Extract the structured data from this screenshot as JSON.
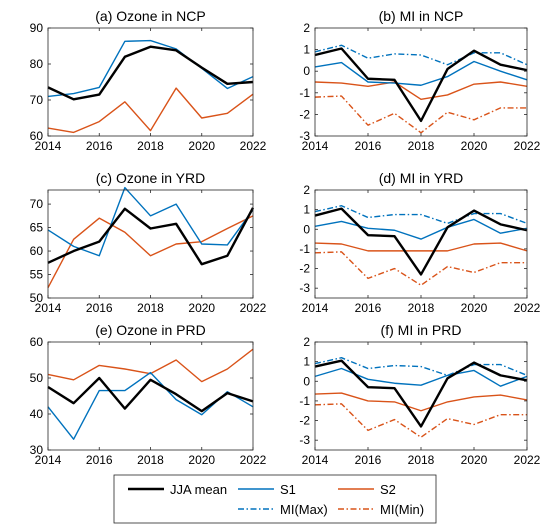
{
  "colors": {
    "jja": "#000000",
    "s1": "#0072bd",
    "s2": "#d95319",
    "mimax": "#0072bd",
    "mimin": "#d95319"
  },
  "legend": [
    {
      "key": "jja",
      "label": "JJA mean",
      "style": "solid-thick"
    },
    {
      "key": "s1",
      "label": "S1",
      "style": "solid"
    },
    {
      "key": "s2",
      "label": "S2",
      "style": "solid"
    },
    {
      "key": "mimax",
      "label": "MI(Max)",
      "style": "dashdot"
    },
    {
      "key": "mimin",
      "label": "MI(Min)",
      "style": "dashdot"
    }
  ],
  "chart_data": [
    {
      "type": "line",
      "title": "(a) Ozone in NCP",
      "x": [
        2014,
        2015,
        2016,
        2017,
        2018,
        2019,
        2020,
        2021,
        2022
      ],
      "xticks": [
        2014,
        2016,
        2018,
        2020,
        2022
      ],
      "xlim": [
        2014,
        2022
      ],
      "ylim": [
        60,
        90
      ],
      "yticks": [
        60,
        70,
        80,
        90
      ],
      "series": [
        {
          "key": "jja",
          "values": [
            73.5,
            70.2,
            71.5,
            82.0,
            84.8,
            83.8,
            79.0,
            74.5,
            75.0
          ]
        },
        {
          "key": "s1",
          "values": [
            71.0,
            71.8,
            73.5,
            86.3,
            86.5,
            84.2,
            78.8,
            73.2,
            76.5
          ]
        },
        {
          "key": "s2",
          "values": [
            62.2,
            61.0,
            64.0,
            69.5,
            61.5,
            73.3,
            65.0,
            66.3,
            71.6
          ]
        }
      ]
    },
    {
      "type": "line",
      "title": "(b) MI in NCP",
      "x": [
        2014,
        2015,
        2016,
        2017,
        2018,
        2019,
        2020,
        2021,
        2022
      ],
      "xticks": [
        2014,
        2016,
        2018,
        2020,
        2022
      ],
      "xlim": [
        2014,
        2022
      ],
      "ylim": [
        -3,
        2
      ],
      "yticks": [
        -3,
        -2,
        -1,
        0,
        1,
        2
      ],
      "series": [
        {
          "key": "jja",
          "values": [
            0.75,
            1.05,
            -0.35,
            -0.4,
            -2.3,
            0.1,
            0.95,
            0.3,
            0.05
          ]
        },
        {
          "key": "s1",
          "values": [
            0.2,
            0.4,
            -0.5,
            -0.55,
            -0.65,
            -0.25,
            0.45,
            0.0,
            -0.4
          ]
        },
        {
          "key": "s2",
          "values": [
            -0.5,
            -0.55,
            -0.7,
            -0.5,
            -1.3,
            -1.1,
            -0.6,
            -0.5,
            -0.7
          ]
        },
        {
          "key": "mimax",
          "values": [
            0.9,
            1.2,
            0.6,
            0.8,
            0.75,
            0.3,
            0.85,
            0.85,
            0.3
          ]
        },
        {
          "key": "mimin",
          "values": [
            -1.2,
            -1.15,
            -2.5,
            -1.95,
            -2.85,
            -1.9,
            -2.25,
            -1.7,
            -1.7
          ]
        }
      ]
    },
    {
      "type": "line",
      "title": "(c) Ozone in YRD",
      "x": [
        2014,
        2015,
        2016,
        2017,
        2018,
        2019,
        2020,
        2021,
        2022
      ],
      "xticks": [
        2014,
        2016,
        2018,
        2020,
        2022
      ],
      "xlim": [
        2014,
        2022
      ],
      "ylim": [
        50,
        73
      ],
      "yticks": [
        50,
        55,
        60,
        65,
        70
      ],
      "series": [
        {
          "key": "jja",
          "values": [
            57.5,
            60.0,
            62.0,
            69.0,
            64.8,
            65.8,
            57.2,
            59.0,
            69.2
          ]
        },
        {
          "key": "s1",
          "values": [
            64.5,
            61.0,
            59.0,
            73.5,
            67.5,
            70.0,
            61.5,
            61.3,
            68.8
          ]
        },
        {
          "key": "s2",
          "values": [
            52.2,
            62.5,
            67.0,
            64.0,
            59.0,
            61.5,
            62.0,
            64.8,
            67.5
          ]
        }
      ]
    },
    {
      "type": "line",
      "title": "(d) MI in YRD",
      "x": [
        2014,
        2015,
        2016,
        2017,
        2018,
        2019,
        2020,
        2021,
        2022
      ],
      "xticks": [
        2014,
        2016,
        2018,
        2020,
        2022
      ],
      "xlim": [
        2014,
        2022
      ],
      "ylim": [
        -3.5,
        2
      ],
      "yticks": [
        -3,
        -2,
        -1,
        0,
        1,
        2
      ],
      "series": [
        {
          "key": "jja",
          "values": [
            0.7,
            1.05,
            -0.3,
            -0.35,
            -2.3,
            0.1,
            0.95,
            0.25,
            -0.05
          ]
        },
        {
          "key": "s1",
          "values": [
            0.15,
            0.4,
            0.05,
            -0.05,
            -0.5,
            0.1,
            0.5,
            -0.2,
            0.05
          ]
        },
        {
          "key": "s2",
          "values": [
            -0.7,
            -0.75,
            -1.1,
            -1.1,
            -1.1,
            -1.1,
            -0.75,
            -0.7,
            -1.1
          ]
        },
        {
          "key": "mimax",
          "values": [
            0.9,
            1.2,
            0.6,
            0.75,
            0.75,
            0.3,
            0.8,
            0.8,
            0.3
          ]
        },
        {
          "key": "mimin",
          "values": [
            -1.2,
            -1.15,
            -2.5,
            -2.0,
            -2.85,
            -1.9,
            -2.2,
            -1.7,
            -1.7
          ]
        }
      ]
    },
    {
      "type": "line",
      "title": "(e) Ozone in PRD",
      "x": [
        2014,
        2015,
        2016,
        2017,
        2018,
        2019,
        2020,
        2021,
        2022
      ],
      "xticks": [
        2014,
        2016,
        2018,
        2020,
        2022
      ],
      "xlim": [
        2014,
        2022
      ],
      "ylim": [
        30,
        60
      ],
      "yticks": [
        30,
        40,
        50,
        60
      ],
      "series": [
        {
          "key": "jja",
          "values": [
            47.5,
            43.0,
            50.0,
            41.5,
            49.5,
            45.5,
            40.8,
            45.8,
            43.5
          ]
        },
        {
          "key": "s1",
          "values": [
            42.0,
            33.0,
            46.5,
            46.5,
            51.5,
            44.0,
            39.8,
            46.2,
            42.0
          ]
        },
        {
          "key": "s2",
          "values": [
            51.0,
            49.5,
            53.5,
            52.5,
            51.2,
            55.0,
            49.0,
            52.5,
            58.0
          ]
        }
      ]
    },
    {
      "type": "line",
      "title": "(f) MI in PRD",
      "x": [
        2014,
        2015,
        2016,
        2017,
        2018,
        2019,
        2020,
        2021,
        2022
      ],
      "xticks": [
        2014,
        2016,
        2018,
        2020,
        2022
      ],
      "xlim": [
        2014,
        2022
      ],
      "ylim": [
        -3.5,
        2
      ],
      "yticks": [
        -3,
        -2,
        -1,
        0,
        1,
        2
      ],
      "series": [
        {
          "key": "jja",
          "values": [
            0.75,
            1.05,
            -0.3,
            -0.35,
            -2.3,
            0.15,
            0.95,
            0.3,
            0.05
          ]
        },
        {
          "key": "s1",
          "values": [
            0.25,
            0.65,
            0.1,
            -0.1,
            -0.2,
            0.3,
            0.55,
            -0.25,
            0.25
          ]
        },
        {
          "key": "s2",
          "values": [
            -0.65,
            -0.6,
            -1.0,
            -1.05,
            -1.5,
            -1.05,
            -0.8,
            -0.7,
            -0.95
          ]
        },
        {
          "key": "mimax",
          "values": [
            0.9,
            1.2,
            0.65,
            0.8,
            0.75,
            0.3,
            0.85,
            0.85,
            0.3
          ]
        },
        {
          "key": "mimin",
          "values": [
            -1.2,
            -1.15,
            -2.5,
            -1.95,
            -2.85,
            -1.9,
            -2.2,
            -1.7,
            -1.7
          ]
        }
      ]
    }
  ]
}
